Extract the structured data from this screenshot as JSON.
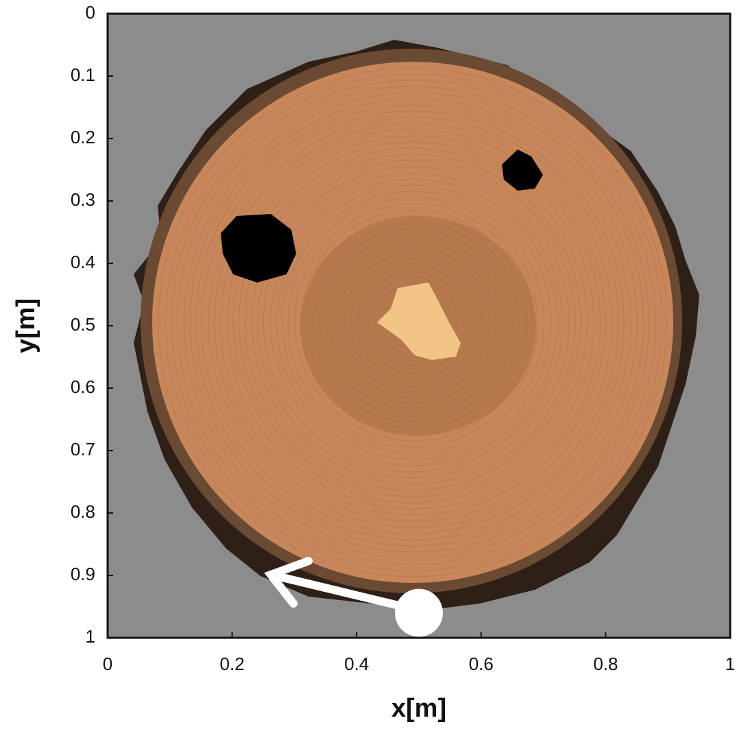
{
  "chart_data": {
    "type": "scatter",
    "xlabel": "x[m]",
    "ylabel": "y[m]",
    "xlim": [
      0,
      1
    ],
    "ylim": [
      1,
      0
    ],
    "xticks": [
      0,
      0.2,
      0.4,
      0.6,
      0.8,
      1
    ],
    "yticks": [
      0,
      0.1,
      0.2,
      0.3,
      0.4,
      0.5,
      0.6,
      0.7,
      0.8,
      0.9,
      1
    ],
    "x": [
      0.5
    ],
    "values": [
      0.96
    ],
    "color": "#ffffff"
  }
}
